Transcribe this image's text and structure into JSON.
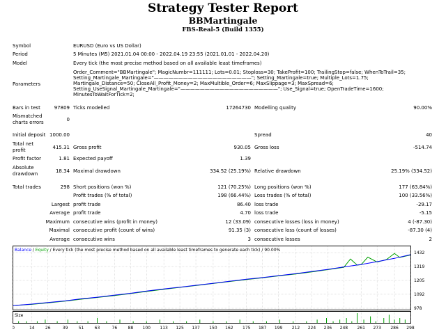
{
  "header": {
    "title": "Strategy Tester Report",
    "expert": "BBMartingale",
    "server": "FBS-Real-5 (Build 1355)"
  },
  "info": {
    "symbol_label": "Symbol",
    "symbol_value": "EURUSD (Euro vs US Dollar)",
    "period_label": "Period",
    "period_value": "5 Minutes (M5) 2021.01.04 00:00 - 2022.04.19 23:55 (2021.01.01 - 2022.04.20)",
    "model_label": "Model",
    "model_value": "Every tick (the most precise method based on all available least timeframes)",
    "parameters_label": "Parameters",
    "parameters_value": "Order_Comment=\"BBMartingale\"; MagicNumbr=111111; Lots=0.01; Stoploss=30; TakeProfit=100; TrailingStop=false; WhenToTrail=35; Setting_Martingale_Martingale=\"————————————————————\"; Setting_Martingale=true; Multiple_Lots=1.75; Martingale_Distance=50; CloseAll_Profit_Money=2; MaxMultible_Order=6; MaxSlippage=3; MaxSpread=6; Setting_UseSignal_Martingale_Martingale=\"————————————————————\"; Use_Signal=true; OpenTradeTime=1600; MinutesToWaitForTick=2;"
  },
  "stats": {
    "bars_label": "Bars in test",
    "bars_value": "97809",
    "ticks_label": "Ticks modelled",
    "ticks_value": "17264730",
    "quality_label": "Modelling quality",
    "quality_value": "90.00%",
    "mismatch_label_1": "Mismatched",
    "mismatch_label_2": "charts errors",
    "mismatch_value": "0",
    "deposit_label": "Initial deposit",
    "deposit_value": "1000.00",
    "spread_label": "Spread",
    "spread_value": "40",
    "netprofit_label_1": "Total net",
    "netprofit_label_2": "profit",
    "netprofit_value": "415.31",
    "grossprofit_label": "Gross profit",
    "grossprofit_value": "930.05",
    "grossloss_label": "Gross loss",
    "grossloss_value": "-514.74",
    "pf_label": "Profit factor",
    "pf_value": "1.81",
    "payoff_label": "Expected payoff",
    "payoff_value": "1.39",
    "absdd_label_1": "Absolute",
    "absdd_label_2": "drawdown",
    "absdd_value": "18.34",
    "maxdd_label": "Maximal drawdown",
    "maxdd_value": "334.52 (25.19%)",
    "reldd_label": "Relative drawdown",
    "reldd_value": "25.19% (334.52)",
    "trades_label": "Total trades",
    "trades_value": "298",
    "short_label": "Short positions (won %)",
    "short_value": "121 (70.25%)",
    "long_label": "Long positions (won %)",
    "long_value": "177 (63.84%)",
    "pt_label": "Profit trades (% of total)",
    "pt_value": "198 (66.44%)",
    "lt_label": "Loss trades (% of total)",
    "lt_value": "100 (33.56%)",
    "largest_label": "Largest",
    "largest_pt_label": "profit trade",
    "largest_pt_value": "86.40",
    "largest_lt_label": "loss trade",
    "largest_lt_value": "-29.17",
    "average_label": "Average",
    "average_pt_label": "profit trade",
    "average_pt_value": "4.70",
    "average_lt_label": "loss trade",
    "average_lt_value": "-5.15",
    "maximum_label": "Maximum",
    "max_cw_label": "consecutive wins (profit in money)",
    "max_cw_value": "12 (33.09)",
    "max_cl_label": "consecutive losses (loss in money)",
    "max_cl_value": "4 (-87.30)",
    "maximal_label": "Maximal",
    "maximal_cp_label": "consecutive profit (count of wins)",
    "maximal_cp_value": "91.35 (3)",
    "maximal_cl_label": "consecutive loss (count of losses)",
    "maximal_cl_value": "-87.30 (4)",
    "avg_label": "Average",
    "avg_cw_label": "consecutive wins",
    "avg_cw_value": "3",
    "avg_cl_label": "consecutive losses",
    "avg_cl_value": "2"
  },
  "chart_data": {
    "type": "line",
    "legend_balance": "Balance",
    "legend_sep": " / ",
    "legend_equity": "Equity",
    "legend_rest": " / Every tick (the most precise method based on all available least timeframes to generate each tick) / 90.00%",
    "size_label": "Size",
    "y_ticks": [
      "1432",
      "1319",
      "1205",
      "1092",
      "978"
    ],
    "y_values": [
      1432,
      1319,
      1205,
      1092,
      978
    ],
    "ylim": [
      978,
      1432
    ],
    "x_ticks": [
      "0",
      "14",
      "26",
      "39",
      "51",
      "63",
      "76",
      "88",
      "100",
      "113",
      "125",
      "137",
      "150",
      "162",
      "175",
      "187",
      "199",
      "212",
      "224",
      "236",
      "248",
      "261",
      "273",
      "286",
      "298"
    ],
    "xlim": [
      0,
      298
    ],
    "series": [
      {
        "name": "Balance",
        "color": "#0000ff",
        "x": [
          0,
          14,
          26,
          39,
          51,
          63,
          76,
          88,
          100,
          113,
          125,
          137,
          150,
          162,
          175,
          187,
          199,
          212,
          224,
          236,
          248,
          261,
          273,
          286,
          298
        ],
        "values": [
          1000,
          1012,
          1025,
          1038,
          1055,
          1068,
          1085,
          1100,
          1118,
          1135,
          1150,
          1165,
          1182,
          1198,
          1215,
          1228,
          1244,
          1260,
          1278,
          1295,
          1315,
          1335,
          1358,
          1385,
          1415
        ]
      },
      {
        "name": "Equity",
        "color": "#00a000",
        "x": [
          0,
          14,
          26,
          39,
          51,
          63,
          76,
          88,
          100,
          113,
          125,
          137,
          150,
          162,
          175,
          187,
          199,
          212,
          224,
          236,
          248,
          253,
          258,
          261,
          266,
          273,
          280,
          286,
          290,
          298
        ],
        "values": [
          1000,
          1010,
          1022,
          1036,
          1052,
          1066,
          1082,
          1098,
          1115,
          1133,
          1148,
          1163,
          1180,
          1196,
          1212,
          1226,
          1242,
          1258,
          1275,
          1293,
          1312,
          1380,
          1330,
          1333,
          1395,
          1355,
          1375,
          1425,
          1392,
          1412
        ]
      }
    ],
    "size_bars": {
      "color": "#00a000",
      "x": [
        4,
        10,
        18,
        24,
        33,
        41,
        48,
        56,
        63,
        70,
        80,
        90,
        100,
        110,
        120,
        130,
        140,
        150,
        160,
        170,
        180,
        190,
        200,
        210,
        220,
        228,
        235,
        240,
        245,
        250,
        254,
        258,
        263,
        268,
        272,
        278,
        282,
        286,
        290,
        294
      ],
      "values": [
        1,
        1,
        1,
        2,
        1,
        2,
        1,
        1,
        3,
        1,
        2,
        1,
        1,
        2,
        1,
        1,
        2,
        1,
        1,
        2,
        1,
        1,
        2,
        1,
        1,
        2,
        3,
        1,
        2,
        3,
        1,
        6,
        2,
        4,
        1,
        3,
        5,
        2,
        3,
        2
      ]
    }
  }
}
